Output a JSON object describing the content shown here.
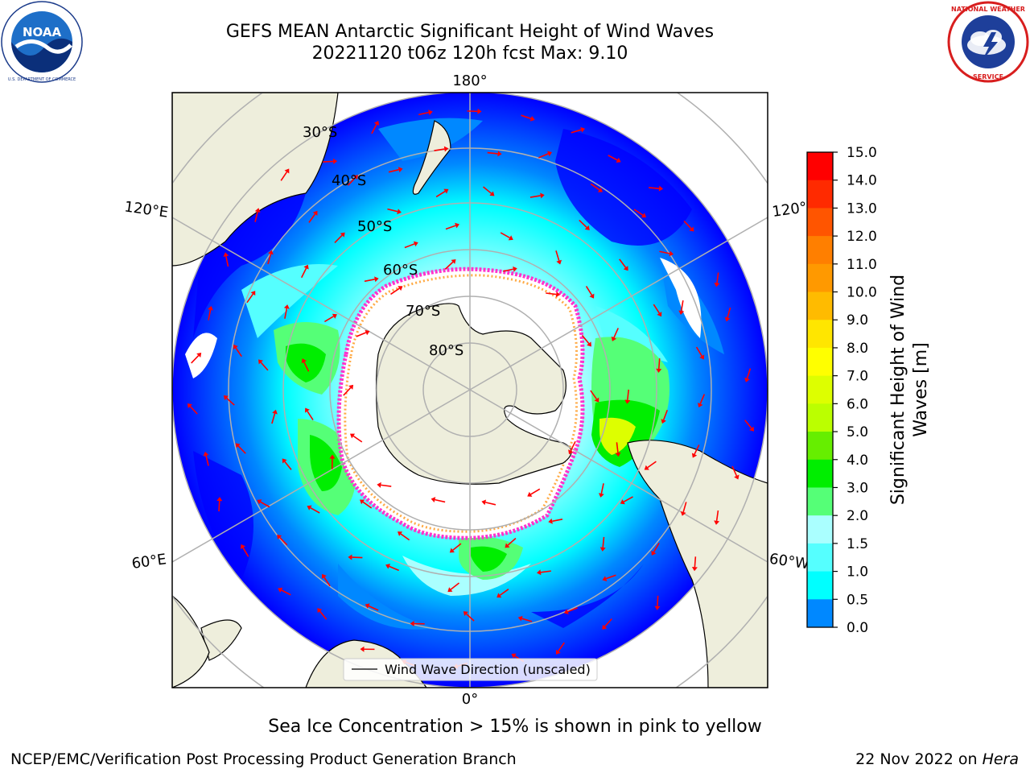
{
  "title": {
    "line1": "GEFS MEAN Antarctic Significant Height of Wind Waves",
    "line2": "20221120 t06z 120h fcst   Max: 9.10"
  },
  "logos": {
    "left_icon": "noaa-logo-icon",
    "left_text": "NOAA",
    "left_ring_text": "NATIONAL OCEANIC AND ATMOSPHERIC ADMINISTRATION · U.S. DEPARTMENT OF COMMERCE",
    "right_icon": "national-weather-service-logo-icon",
    "right_ring_text": "NATIONAL WEATHER SERVICE"
  },
  "map": {
    "projection": "south-polar-stereographic",
    "lon_labels": [
      "180°",
      "120°E",
      "120°",
      "60°E",
      "60°W",
      "0°"
    ],
    "lat_labels": [
      "30°S",
      "40°S",
      "50°S",
      "60°S",
      "70°S",
      "80°S"
    ],
    "legend_label": "Wind Wave Direction (unscaled)",
    "colors": {
      "land": "#eeeedc",
      "ice": "#ffffff",
      "arrow": "#ff0000",
      "grid": "#b0b0b0",
      "sea_ice_edge": [
        "#ff33cc",
        "#ffaa44",
        "#ffff66"
      ]
    }
  },
  "colorbar": {
    "label": "Significant Height of Wind Waves [m]",
    "label_line1": "Significant Height of Wind",
    "label_line2": "Waves [m]",
    "ticks": [
      "15.0",
      "14.0",
      "13.0",
      "12.0",
      "11.0",
      "10.0",
      "9.0",
      "8.0",
      "7.0",
      "6.0",
      "5.0",
      "4.0",
      "3.0",
      "2.0",
      "1.5",
      "1.0",
      "0.5",
      "0.0"
    ],
    "colors_top_to_bottom": [
      "#ff0000",
      "#ff2a00",
      "#ff5500",
      "#ff7f00",
      "#ff9900",
      "#ffbb00",
      "#ffe600",
      "#ffff00",
      "#ddff00",
      "#bbff00",
      "#66ee00",
      "#00ee00",
      "#55ff77",
      "#aaffff",
      "#55ffff",
      "#00ffff",
      "#0088ff",
      "#0000ff"
    ]
  },
  "note": "Sea Ice Concentration > 15% is shown in pink to yellow",
  "footer": {
    "left": "NCEP/EMC/Verification Post Processing Product Generation Branch",
    "right_prefix": "22 Nov 2022 on ",
    "right_italic": "Hera"
  }
}
